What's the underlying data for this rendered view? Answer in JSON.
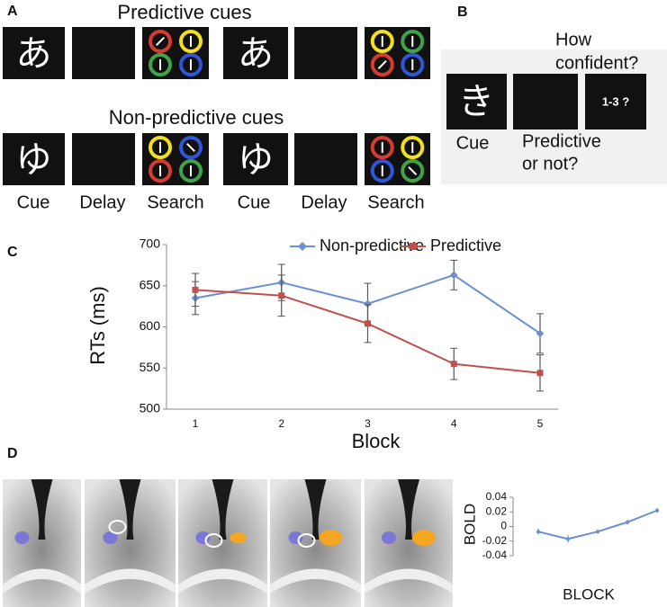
{
  "panel_a": {
    "label": "A",
    "title_predictive": "Predictive cues",
    "title_nonpredictive": "Non-predictive cues",
    "cue_chars": [
      "あ",
      "あ",
      "ゆ",
      "ゆ"
    ],
    "captions": [
      "Cue",
      "Delay",
      "Search",
      "Cue",
      "Delay",
      "Search"
    ]
  },
  "panel_b": {
    "label": "B",
    "question_lines": [
      "How",
      "confident?"
    ],
    "cue_char": "き",
    "rating": "1-3 ?",
    "cue_caption": "Cue",
    "prompt_lines": [
      "Predictive",
      "or not?"
    ]
  },
  "panel_d": {
    "label": "D"
  },
  "chart_data": [
    {
      "type": "line",
      "panel_label": "C",
      "x_label": "Block",
      "y_label": "RTs (ms)",
      "categories": [
        "1",
        "2",
        "3",
        "4",
        "5"
      ],
      "series": [
        {
          "name": "Non-predictive",
          "color": "#6a8fd4",
          "marker": "diamond",
          "values": [
            635,
            654,
            628,
            663,
            592
          ],
          "errors": [
            20,
            22,
            25,
            18,
            24
          ]
        },
        {
          "name": "Predictive",
          "color": "#c0504d",
          "marker": "square",
          "values": [
            645,
            638,
            604,
            555,
            544
          ],
          "errors": [
            20,
            25,
            23,
            19,
            22
          ]
        }
      ],
      "ylim": [
        500,
        700
      ],
      "yticks": [
        500,
        550,
        600,
        650,
        700
      ],
      "legend": "top"
    },
    {
      "type": "line",
      "x_label": "BLOCK",
      "y_label": "BOLD",
      "categories": [
        null,
        null,
        null,
        null,
        null
      ],
      "series": [
        {
          "color": "#6a8fd4",
          "values": [
            -0.007,
            -0.017,
            -0.007,
            0.006,
            0.022
          ],
          "errors": [
            0.004,
            0.005,
            0.003,
            0.003,
            0.003
          ]
        }
      ],
      "ylim": [
        -0.04,
        0.04
      ],
      "yticks": [
        -0.04,
        -0.02,
        0,
        0.02,
        0.04
      ]
    }
  ]
}
